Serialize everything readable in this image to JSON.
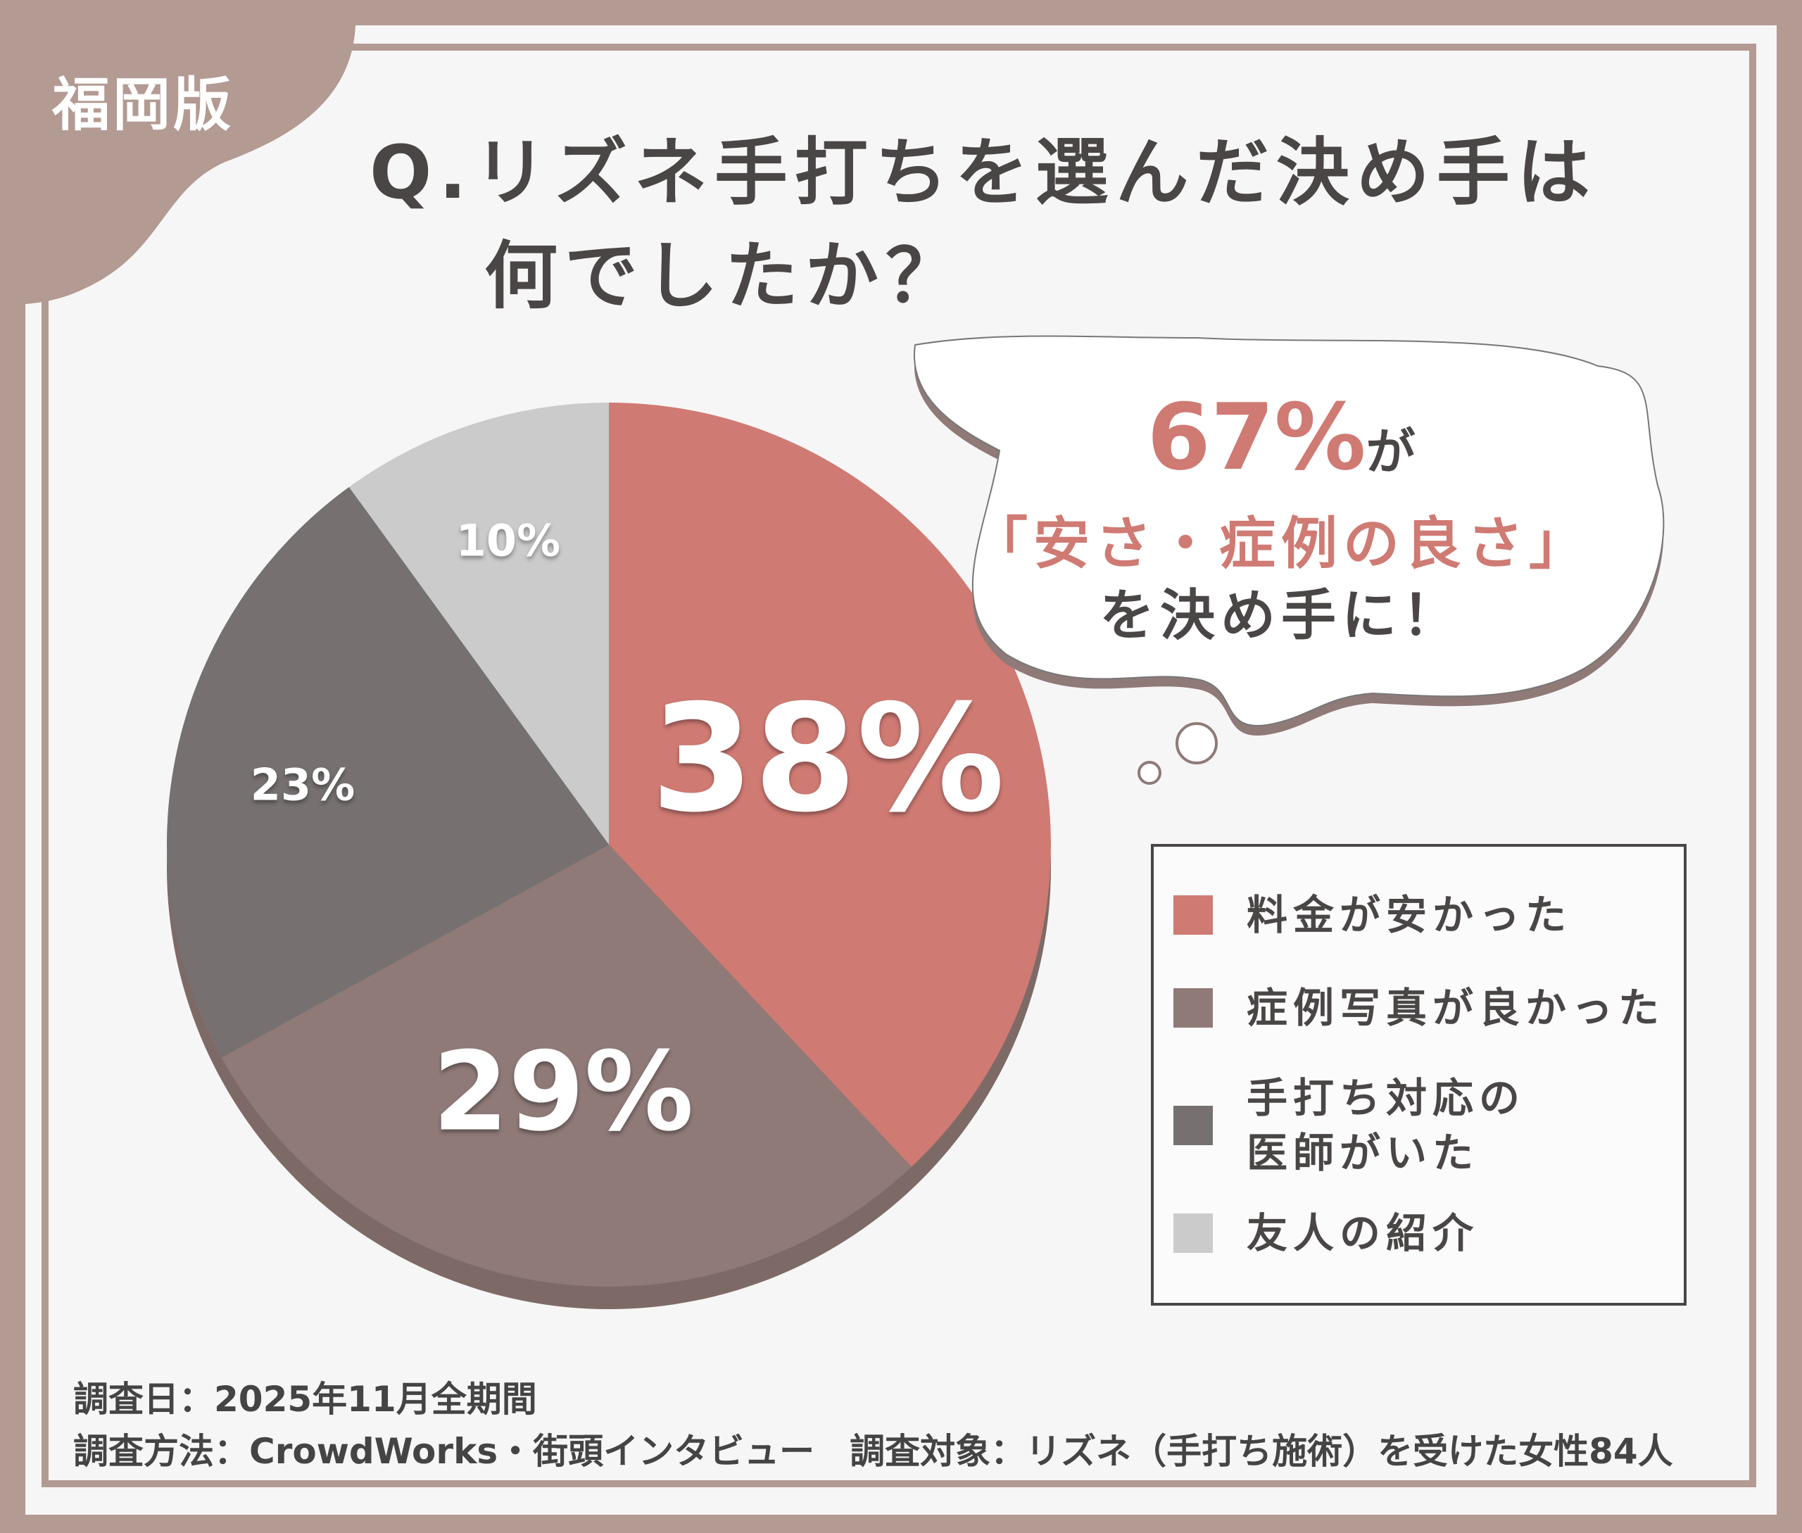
{
  "badge": "福岡版",
  "title": {
    "line1": "Q.リズネ手打ちを選んだ決め手は",
    "line2": "何でしたか？"
  },
  "bubble": {
    "big": "67%",
    "suffix": "が",
    "line2": "「安さ・症例の良さ」",
    "line3": "を決め手に！"
  },
  "colors": {
    "frame": "#b39a92",
    "accent": "#cf7a73",
    "text": "#4a4646"
  },
  "chart_data": {
    "type": "pie",
    "start": "12 o'clock, clockwise",
    "categories": [
      "料金が安かった",
      "症例写真が良かった",
      "手打ち対応の\n医師がいた",
      "友人の紹介"
    ],
    "values": [
      38,
      29,
      23,
      10
    ],
    "labels": [
      "38%",
      "29%",
      "23%",
      "10%"
    ],
    "colors": [
      "#cf7a73",
      "#8f7a78",
      "#767170",
      "#cbcbcb"
    ],
    "legend": "right"
  },
  "footer": {
    "line1": "調査日：2025年11月全期間",
    "line2": "調査方法：CrowdWorks・街頭インタビュー　調査対象：リズネ（手打ち施術）を受けた女性84人"
  }
}
